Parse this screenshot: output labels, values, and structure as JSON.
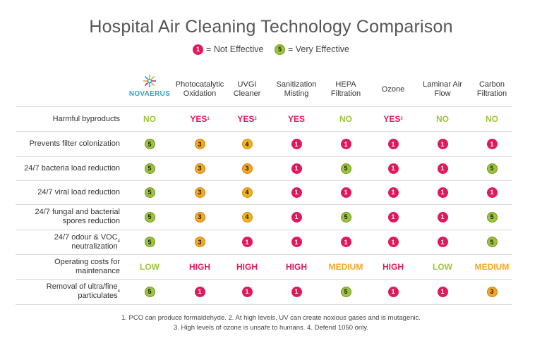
{
  "title": "Hospital Air Cleaning Technology Comparison",
  "legend": [
    {
      "num": "1",
      "color": "red",
      "text": "= Not Effective"
    },
    {
      "num": "5",
      "color": "green",
      "text": "= Very Effective"
    }
  ],
  "logo": {
    "text": "NOVAERUS"
  },
  "columns": [
    "NOVAERUS",
    "Photocatalytic Oxidation",
    "UVGI Cleaner",
    "Sanitization Misting",
    "HEPA Filtration",
    "Ozone",
    "Laminar Air Flow",
    "Carbon Filtration"
  ],
  "rows": [
    {
      "label": "Harmful byproducts",
      "sup": "",
      "type": "text",
      "cells": [
        {
          "text": "NO",
          "color": "green",
          "sup": ""
        },
        {
          "text": "YES",
          "color": "red",
          "sup": "1"
        },
        {
          "text": "YES",
          "color": "red",
          "sup": "2"
        },
        {
          "text": "YES",
          "color": "red",
          "sup": ""
        },
        {
          "text": "NO",
          "color": "green",
          "sup": ""
        },
        {
          "text": "YES",
          "color": "red",
          "sup": "3"
        },
        {
          "text": "NO",
          "color": "green",
          "sup": ""
        },
        {
          "text": "NO",
          "color": "green",
          "sup": ""
        }
      ]
    },
    {
      "label": "Prevents filter colonization",
      "sup": "",
      "type": "rating",
      "cells": [
        "5",
        "3",
        "4",
        "1",
        "1",
        "1",
        "1",
        "1"
      ]
    },
    {
      "label": "24/7 bacteria load reduction",
      "sup": "",
      "type": "rating",
      "cells": [
        "5",
        "3",
        "3",
        "1",
        "5",
        "1",
        "1",
        "5"
      ]
    },
    {
      "label": "24/7 viral load reduction",
      "sup": "",
      "type": "rating",
      "cells": [
        "5",
        "3",
        "4",
        "1",
        "1",
        "1",
        "1",
        "1"
      ]
    },
    {
      "label": "24/7 fungal and bacterial spores reduction",
      "sup": "",
      "type": "rating",
      "cells": [
        "5",
        "3",
        "4",
        "1",
        "5",
        "1",
        "1",
        "5"
      ]
    },
    {
      "label": "24/7 odour & VOC neutralization",
      "sup": "4",
      "type": "rating",
      "cells": [
        "5",
        "3",
        "1",
        "1",
        "1",
        "1",
        "1",
        "5"
      ]
    },
    {
      "label": "Operating costs for maintenance",
      "sup": "",
      "type": "text",
      "cells": [
        {
          "text": "LOW",
          "color": "green",
          "sup": ""
        },
        {
          "text": "HIGH",
          "color": "red",
          "sup": ""
        },
        {
          "text": "HIGH",
          "color": "red",
          "sup": ""
        },
        {
          "text": "HIGH",
          "color": "red",
          "sup": ""
        },
        {
          "text": "MEDIUM",
          "color": "orange",
          "sup": ""
        },
        {
          "text": "HIGH",
          "color": "red",
          "sup": ""
        },
        {
          "text": "LOW",
          "color": "green",
          "sup": ""
        },
        {
          "text": "MEDIUM",
          "color": "orange",
          "sup": ""
        }
      ]
    },
    {
      "label": "Removal of ultra/fine particulates",
      "sup": "4",
      "type": "rating",
      "cells": [
        "5",
        "1",
        "1",
        "1",
        "5",
        "1",
        "1",
        "3"
      ]
    }
  ],
  "footnotes": [
    "1. PCO can produce formaldehyde.  2. At high levels, UV can create noxious gases and is mutagenic.",
    "3. High levels of ozone is unsafe to humans.     4. Defend 1050 only."
  ],
  "colors": {
    "red": "#e0195a",
    "green": "#9dc53b",
    "orange": "#f5a623",
    "text": "#333333"
  }
}
